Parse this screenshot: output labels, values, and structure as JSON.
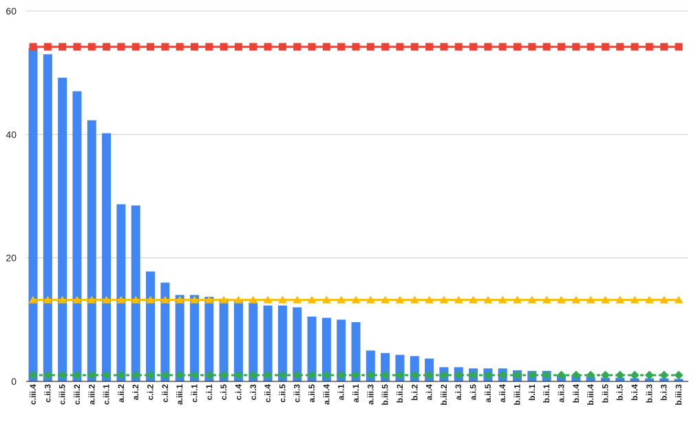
{
  "chart_data": {
    "type": "bar",
    "title": "",
    "xlabel": "",
    "ylabel": "",
    "ylim": [
      0,
      60
    ],
    "yticks": [
      0,
      20,
      40,
      60
    ],
    "grid": true,
    "legend": "none",
    "categories": [
      "c.iii.4",
      "c.ii.3",
      "c.iii.5",
      "c.iii.2",
      "a.iii.2",
      "c.iii.1",
      "a.ii.2",
      "a.i.2",
      "c.i.2",
      "c.ii.2",
      "a.iii.1",
      "c.ii.1",
      "c.i.1",
      "c.i.5",
      "c.i.4",
      "c.i.3",
      "c.ii.4",
      "c.ii.5",
      "c.ii.3",
      "a.ii.5",
      "a.iii.4",
      "a.i.1",
      "a.ii.1",
      "a.iii.3",
      "b.iii.5",
      "b.ii.2",
      "b.i.2",
      "a.i.4",
      "b.iii.2",
      "a.i.3",
      "a.i.5",
      "a.ii.5",
      "a.ii.4",
      "b.iii.1",
      "b.i.1",
      "b.ii.1",
      "a.ii.3",
      "b.ii.4",
      "b.iii.4",
      "b.ii.5",
      "b.i.5",
      "b.i.4",
      "b.ii.3",
      "b.i.3",
      "b.iii.3"
    ],
    "series": [
      {
        "type": "bar",
        "color": "#4285f4",
        "values": [
          54.0,
          53.0,
          49.2,
          47.0,
          42.3,
          40.2,
          28.7,
          28.5,
          17.8,
          16.0,
          14.0,
          14.0,
          13.7,
          13.4,
          13.0,
          12.8,
          12.3,
          12.3,
          12.0,
          10.5,
          10.3,
          10.0,
          9.6,
          5.0,
          4.6,
          4.3,
          4.1,
          3.7,
          2.3,
          2.3,
          2.1,
          2.1,
          2.1,
          1.8,
          1.7,
          1.7,
          1.0,
          1.0,
          0.8,
          0.6,
          0.6,
          0.5,
          0.5,
          0.5,
          0.4
        ]
      },
      {
        "type": "line",
        "color": "#ea4335",
        "marker": "square",
        "values": [
          54.2,
          54.2,
          54.2,
          54.2,
          54.2,
          54.2,
          54.2,
          54.2,
          54.2,
          54.2,
          54.2,
          54.2,
          54.2,
          54.2,
          54.2,
          54.2,
          54.2,
          54.2,
          54.2,
          54.2,
          54.2,
          54.2,
          54.2,
          54.2,
          54.2,
          54.2,
          54.2,
          54.2,
          54.2,
          54.2,
          54.2,
          54.2,
          54.2,
          54.2,
          54.2,
          54.2,
          54.2,
          54.2,
          54.2,
          54.2,
          54.2,
          54.2,
          54.2,
          54.2,
          54.2
        ]
      },
      {
        "type": "line",
        "color": "#fbbc04",
        "marker": "triangle",
        "values": [
          13.2,
          13.2,
          13.2,
          13.2,
          13.2,
          13.2,
          13.2,
          13.2,
          13.2,
          13.2,
          13.2,
          13.2,
          13.2,
          13.2,
          13.2,
          13.2,
          13.2,
          13.2,
          13.2,
          13.2,
          13.2,
          13.2,
          13.2,
          13.2,
          13.2,
          13.2,
          13.2,
          13.2,
          13.2,
          13.2,
          13.2,
          13.2,
          13.2,
          13.2,
          13.2,
          13.2,
          13.2,
          13.2,
          13.2,
          13.2,
          13.2,
          13.2,
          13.2,
          13.2,
          13.2
        ]
      },
      {
        "type": "line",
        "color": "#34a853",
        "marker": "diamond",
        "dashed": true,
        "values": [
          1.0,
          1.0,
          1.0,
          1.0,
          1.0,
          1.0,
          1.0,
          1.0,
          1.0,
          1.0,
          1.0,
          1.0,
          1.0,
          1.0,
          1.0,
          1.0,
          1.0,
          1.0,
          1.0,
          1.0,
          1.0,
          1.0,
          1.0,
          1.0,
          1.0,
          1.0,
          1.0,
          1.0,
          1.0,
          1.0,
          1.0,
          1.0,
          1.0,
          1.0,
          1.0,
          1.0,
          1.0,
          1.0,
          1.0,
          1.0,
          1.0,
          1.0,
          1.0,
          1.0,
          1.0
        ]
      }
    ]
  },
  "colors": {
    "gridline": "#cccccc",
    "baseline": "#333333"
  }
}
